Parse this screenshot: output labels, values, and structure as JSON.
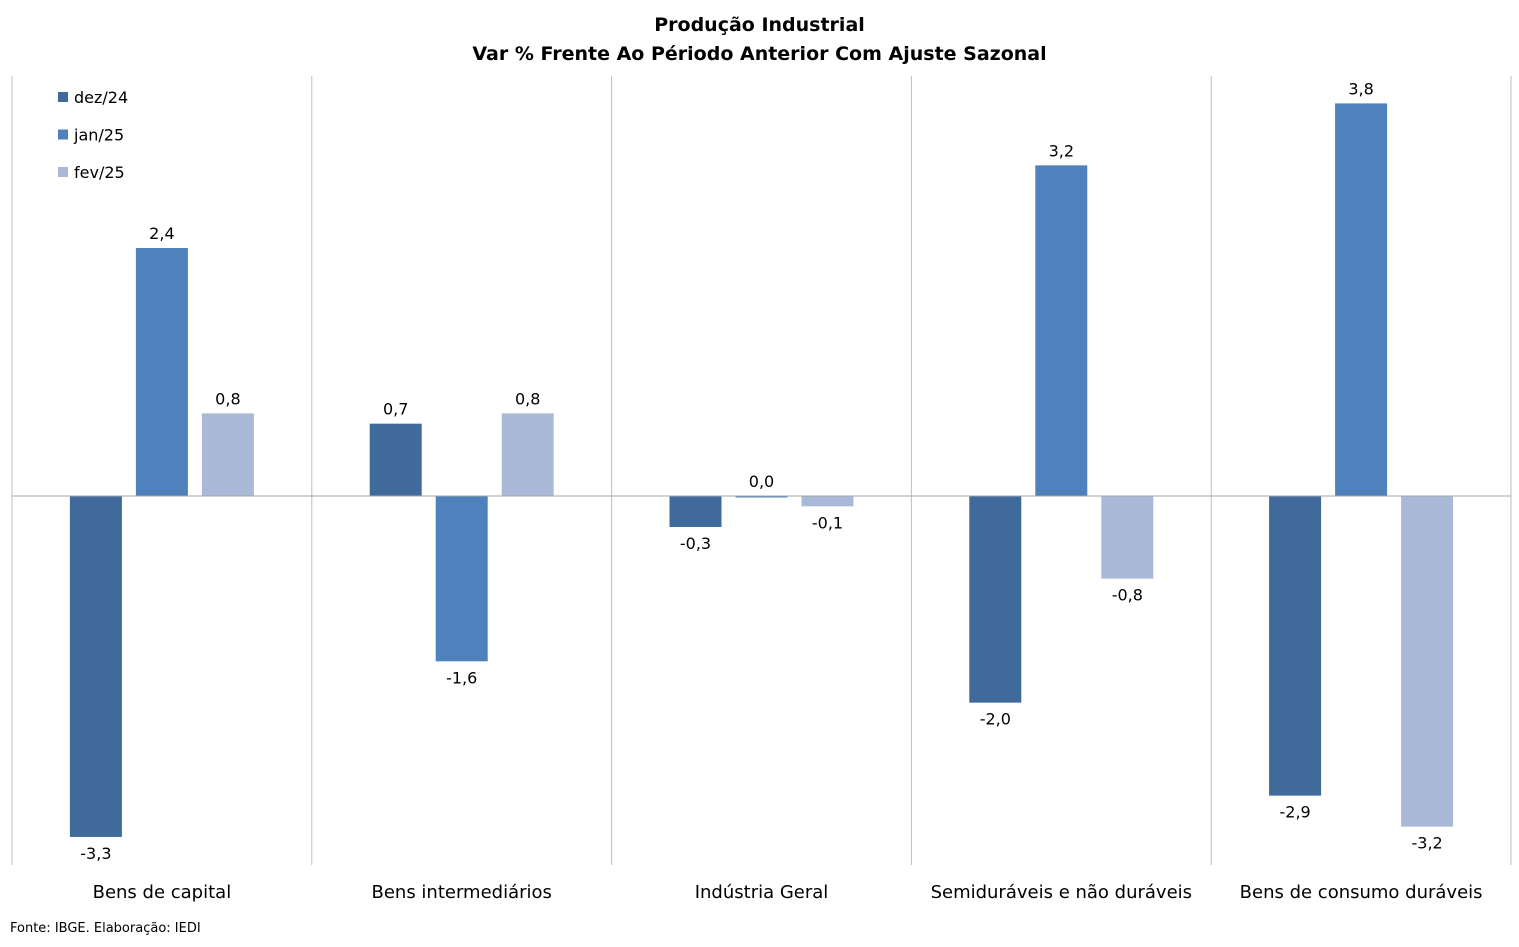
{
  "title": "Produção Industrial",
  "subtitle": "Var % Frente Ao Périodo Anterior Com Ajuste Sazonal",
  "source": "Fonte: IBGE. Elaboração: IEDI",
  "chart_data": {
    "type": "bar",
    "title": "Produção Industrial",
    "subtitle": "Var % Frente Ao Périodo Anterior Com Ajuste Sazonal",
    "categories": [
      "Bens de capital",
      "Bens intermediários",
      "Indústria Geral",
      "Semiduráveis e não duráveis",
      "Bens de consumo duráveis"
    ],
    "series": [
      {
        "name": "dez/24",
        "color": "#406a9c",
        "values": [
          -3.3,
          0.7,
          -0.3,
          -2.0,
          -2.9
        ],
        "labels": [
          "-3,3",
          "0,7",
          "-0,3",
          "-2,0",
          "-2,9"
        ]
      },
      {
        "name": "jan/25",
        "color": "#4f81bd",
        "values": [
          2.4,
          -1.6,
          0.0,
          3.2,
          3.8
        ],
        "labels": [
          "2,4",
          "-1,6",
          "0,0",
          "3,2",
          "3,8"
        ]
      },
      {
        "name": "fev/25",
        "color": "#aab9d8",
        "values": [
          0.8,
          0.8,
          -0.1,
          -0.8,
          -3.2
        ],
        "labels": [
          "0,8",
          "0,8",
          "-0,1",
          "-0,8",
          "-3,2"
        ]
      }
    ],
    "ylim": [
      -3.5,
      4.0
    ],
    "grid": "vertical separators between categories",
    "legend_position": "top-left",
    "data_labels": true
  }
}
